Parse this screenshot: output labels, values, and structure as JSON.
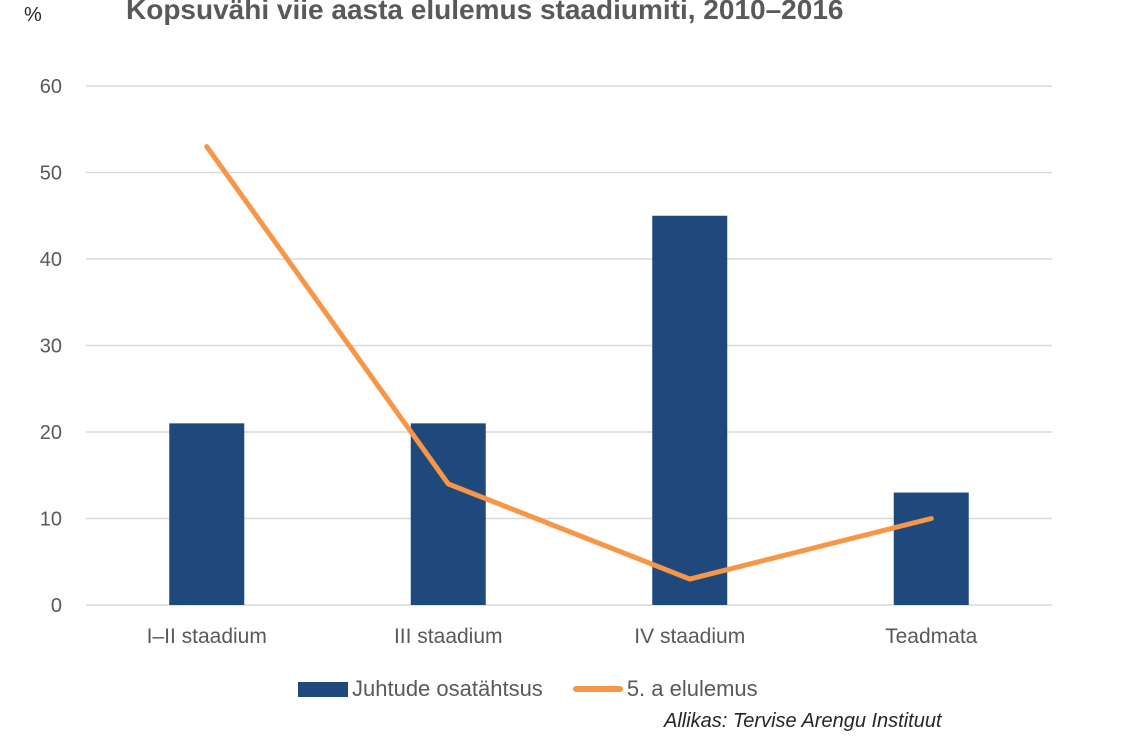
{
  "chart_data": {
    "type": "bar+line",
    "title": "Kopsuvähi viie aasta elulemus staadiumiti,  2010–2016",
    "ylabel": "%",
    "xlabel": "",
    "ylim": [
      0,
      60
    ],
    "yticks": [
      "0",
      "10",
      "20",
      "30",
      "40",
      "50",
      "60"
    ],
    "categories": [
      "I–II staadium",
      "III staadium",
      "IV staadium",
      "Teadmata"
    ],
    "series": [
      {
        "name": "Juhtude osatähtsus",
        "type": "bar",
        "color": "#1f497d",
        "values": [
          21,
          21,
          45,
          13
        ]
      },
      {
        "name": "5. a elulemus",
        "type": "line",
        "color": "#f79646",
        "values": [
          53,
          14,
          3,
          10
        ]
      }
    ],
    "grid": true,
    "legend_position": "bottom",
    "source": "Allikas: Tervise Arengu Instituut"
  }
}
